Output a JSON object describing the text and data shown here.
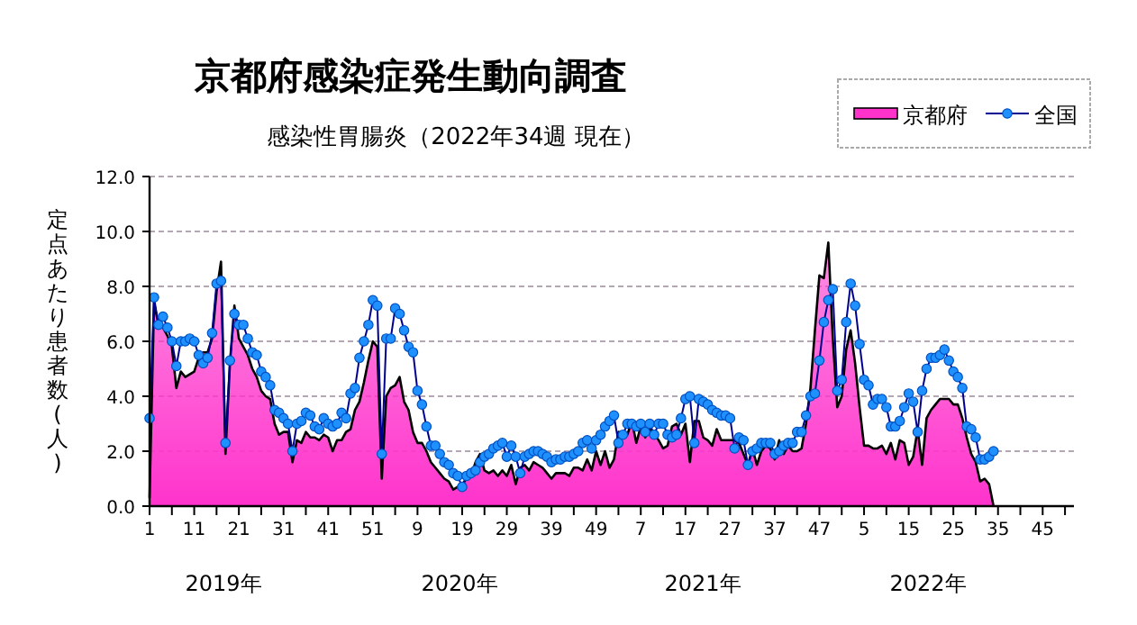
{
  "chart_data": {
    "type": "area",
    "title": "京都府感染症発生動向調査",
    "subtitle": "感染性胃腸炎（2022年34週 現在）",
    "ylabel": "定点あたり患者数(人)",
    "categories": [
      "1",
      null,
      null,
      null,
      null,
      null,
      null,
      null,
      null,
      null,
      "11",
      null,
      null,
      null,
      null,
      null,
      null,
      null,
      null,
      null,
      "21",
      null,
      null,
      null,
      null,
      null,
      null,
      null,
      null,
      null,
      "31",
      null,
      null,
      null,
      null,
      null,
      null,
      null,
      null,
      null,
      "41",
      null,
      null,
      null,
      null,
      null,
      null,
      null,
      null,
      null,
      "51",
      null,
      null,
      null,
      null,
      null,
      null,
      null,
      null,
      null,
      "9",
      null,
      null,
      null,
      null,
      null,
      null,
      null,
      null,
      null,
      "19",
      null,
      null,
      null,
      null,
      null,
      null,
      null,
      null,
      null,
      "29",
      null,
      null,
      null,
      null,
      null,
      null,
      null,
      null,
      null,
      "39",
      null,
      null,
      null,
      null,
      null,
      null,
      null,
      null,
      null,
      "49",
      null,
      null,
      null,
      null,
      null,
      null,
      null,
      null,
      null,
      "7",
      null,
      null,
      null,
      null,
      null,
      null,
      null,
      null,
      null,
      "17",
      null,
      null,
      null,
      null,
      null,
      null,
      null,
      null,
      null,
      "27",
      null,
      null,
      null,
      null,
      null,
      null,
      null,
      null,
      null,
      "37",
      null,
      null,
      null,
      null,
      null,
      null,
      null,
      null,
      null,
      "47",
      null,
      null,
      null,
      null,
      null,
      null,
      null,
      null,
      null,
      "5",
      null,
      null,
      null,
      null,
      null,
      null,
      null,
      null,
      null,
      "15",
      null,
      null,
      null,
      null,
      null,
      null,
      null,
      null,
      null,
      "25",
      null,
      null,
      null,
      null,
      null,
      null,
      null,
      null,
      null,
      "35",
      null,
      null,
      null,
      null,
      null,
      null,
      null,
      null,
      null,
      "45",
      null,
      null,
      null,
      null,
      null,
      null,
      null
    ],
    "series": [
      {
        "name": "京都府",
        "color": "#ff33cc",
        "values": [
          0.3,
          7.4,
          6.6,
          6.5,
          6.2,
          5.8,
          4.3,
          4.9,
          4.7,
          4.8,
          4.9,
          5.4,
          5.6,
          5.6,
          6.1,
          7.8,
          8.9,
          1.9,
          5.2,
          7.3,
          6.1,
          5.8,
          5.5,
          5.0,
          4.7,
          4.2,
          4.0,
          3.9,
          3.0,
          2.6,
          2.7,
          2.7,
          1.6,
          2.4,
          2.3,
          2.7,
          2.5,
          2.5,
          2.4,
          2.6,
          2.5,
          2.0,
          2.4,
          2.4,
          2.7,
          2.8,
          3.5,
          3.8,
          4.5,
          5.3,
          6.0,
          5.8,
          1.0,
          4.0,
          4.3,
          4.4,
          4.7,
          3.8,
          3.5,
          2.7,
          2.3,
          2.3,
          2.0,
          1.6,
          1.4,
          1.2,
          1.0,
          0.9,
          0.6,
          0.7,
          0.8,
          1.0,
          1.1,
          1.6,
          1.9,
          1.3,
          1.2,
          1.3,
          1.1,
          1.3,
          1.1,
          1.5,
          0.8,
          1.4,
          1.5,
          1.3,
          1.6,
          1.5,
          1.4,
          1.2,
          1.0,
          1.2,
          1.2,
          1.2,
          1.1,
          1.4,
          1.4,
          1.3,
          1.7,
          1.3,
          2.0,
          1.5,
          2.0,
          1.4,
          1.7,
          2.7,
          2.5,
          2.6,
          3.1,
          2.3,
          2.9,
          2.5,
          2.8,
          2.6,
          2.4,
          2.1,
          2.2,
          2.9,
          3.0,
          2.6,
          3.0,
          1.6,
          3.1,
          3.1,
          2.5,
          2.4,
          2.2,
          2.8,
          2.4,
          2.4,
          2.4,
          2.4,
          2.3,
          1.9,
          1.5,
          2.1,
          1.5,
          2.0,
          2.2,
          2.1,
          1.7,
          2.4,
          1.9,
          2.2,
          2.0,
          2.0,
          2.1,
          3.0,
          4.3,
          6.4,
          8.4,
          8.3,
          9.6,
          6.1,
          3.6,
          4.0,
          5.7,
          6.4,
          5.2,
          3.6,
          2.2,
          2.2,
          2.1,
          2.1,
          2.2,
          1.9,
          2.3,
          1.7,
          2.4,
          2.3,
          1.5,
          1.8,
          2.8,
          1.5,
          3.2,
          3.5,
          3.7,
          3.9,
          3.9,
          3.9,
          3.7,
          3.7,
          3.2,
          2.5,
          1.9,
          1.6,
          0.9,
          1.0,
          0.8,
          0.0,
          null,
          null,
          null,
          null,
          null,
          null,
          null,
          null,
          null,
          null,
          null,
          null,
          null,
          null,
          null,
          null,
          null,
          null
        ]
      },
      {
        "name": "全国",
        "type": "line",
        "color": "#1e90ff",
        "marker": "circle",
        "values": [
          3.2,
          7.6,
          6.6,
          6.9,
          6.5,
          6.0,
          5.1,
          6.0,
          6.0,
          6.1,
          6.0,
          5.5,
          5.2,
          5.4,
          6.3,
          8.1,
          8.2,
          2.3,
          5.3,
          7.0,
          6.6,
          6.6,
          6.1,
          5.6,
          5.5,
          4.9,
          4.7,
          4.4,
          3.5,
          3.4,
          3.2,
          3.0,
          2.0,
          3.0,
          3.1,
          3.4,
          3.3,
          2.9,
          2.8,
          3.2,
          3.0,
          2.9,
          3.0,
          3.4,
          3.2,
          4.1,
          4.3,
          5.4,
          6.0,
          6.6,
          7.5,
          7.3,
          1.9,
          6.1,
          6.1,
          7.2,
          7.0,
          6.4,
          5.8,
          5.6,
          4.2,
          3.7,
          2.9,
          2.2,
          2.2,
          1.9,
          1.6,
          1.5,
          1.2,
          1.1,
          0.7,
          1.1,
          1.2,
          1.3,
          1.6,
          1.8,
          1.9,
          2.1,
          2.2,
          2.3,
          1.8,
          2.2,
          1.8,
          1.2,
          1.8,
          1.9,
          2.0,
          2.0,
          1.9,
          1.8,
          1.6,
          1.7,
          1.7,
          1.8,
          1.8,
          1.9,
          2.0,
          2.3,
          2.4,
          2.1,
          2.4,
          2.6,
          2.9,
          3.1,
          3.3,
          2.3,
          2.6,
          3.0,
          3.0,
          2.9,
          3.0,
          2.7,
          3.0,
          2.6,
          3.0,
          3.0,
          2.6,
          2.5,
          2.6,
          3.2,
          3.9,
          4.0,
          2.3,
          3.9,
          3.8,
          3.7,
          3.5,
          3.4,
          3.3,
          3.3,
          3.2,
          2.1,
          2.5,
          2.4,
          1.5,
          2.0,
          2.1,
          2.3,
          2.3,
          2.3,
          1.9,
          2.0,
          2.2,
          2.3,
          2.3,
          2.7,
          2.7,
          3.3,
          4.0,
          4.1,
          5.3,
          6.7,
          7.5,
          7.9,
          4.2,
          4.6,
          6.7,
          8.1,
          7.3,
          5.9,
          4.6,
          4.4,
          3.7,
          3.9,
          3.9,
          3.6,
          2.9,
          2.9,
          3.1,
          3.6,
          4.1,
          3.8,
          2.7,
          4.2,
          5.0,
          5.4,
          5.4,
          5.5,
          5.7,
          5.3,
          4.9,
          4.7,
          4.3,
          2.9,
          2.8,
          2.5,
          1.7,
          1.7,
          1.8,
          2.0,
          null,
          null,
          null,
          null,
          null,
          null,
          null,
          null,
          null,
          null,
          null,
          null,
          null,
          null,
          null,
          null,
          null,
          null
        ]
      }
    ],
    "ylim": [
      0,
      12
    ],
    "yticks": [
      {
        "value": 0,
        "label": "0.0"
      },
      {
        "value": 2,
        "label": "2.0"
      },
      {
        "value": 4,
        "label": "4.0"
      },
      {
        "value": 6,
        "label": "6.0"
      },
      {
        "value": 8,
        "label": "8.0"
      },
      {
        "value": 10,
        "label": "10.0"
      },
      {
        "value": 12,
        "label": "12.0"
      }
    ],
    "annotations": [
      "2019年",
      "2020年",
      "2021年",
      "2022年"
    ],
    "grid": "y",
    "legend": "top right",
    "line_style": "solid"
  }
}
